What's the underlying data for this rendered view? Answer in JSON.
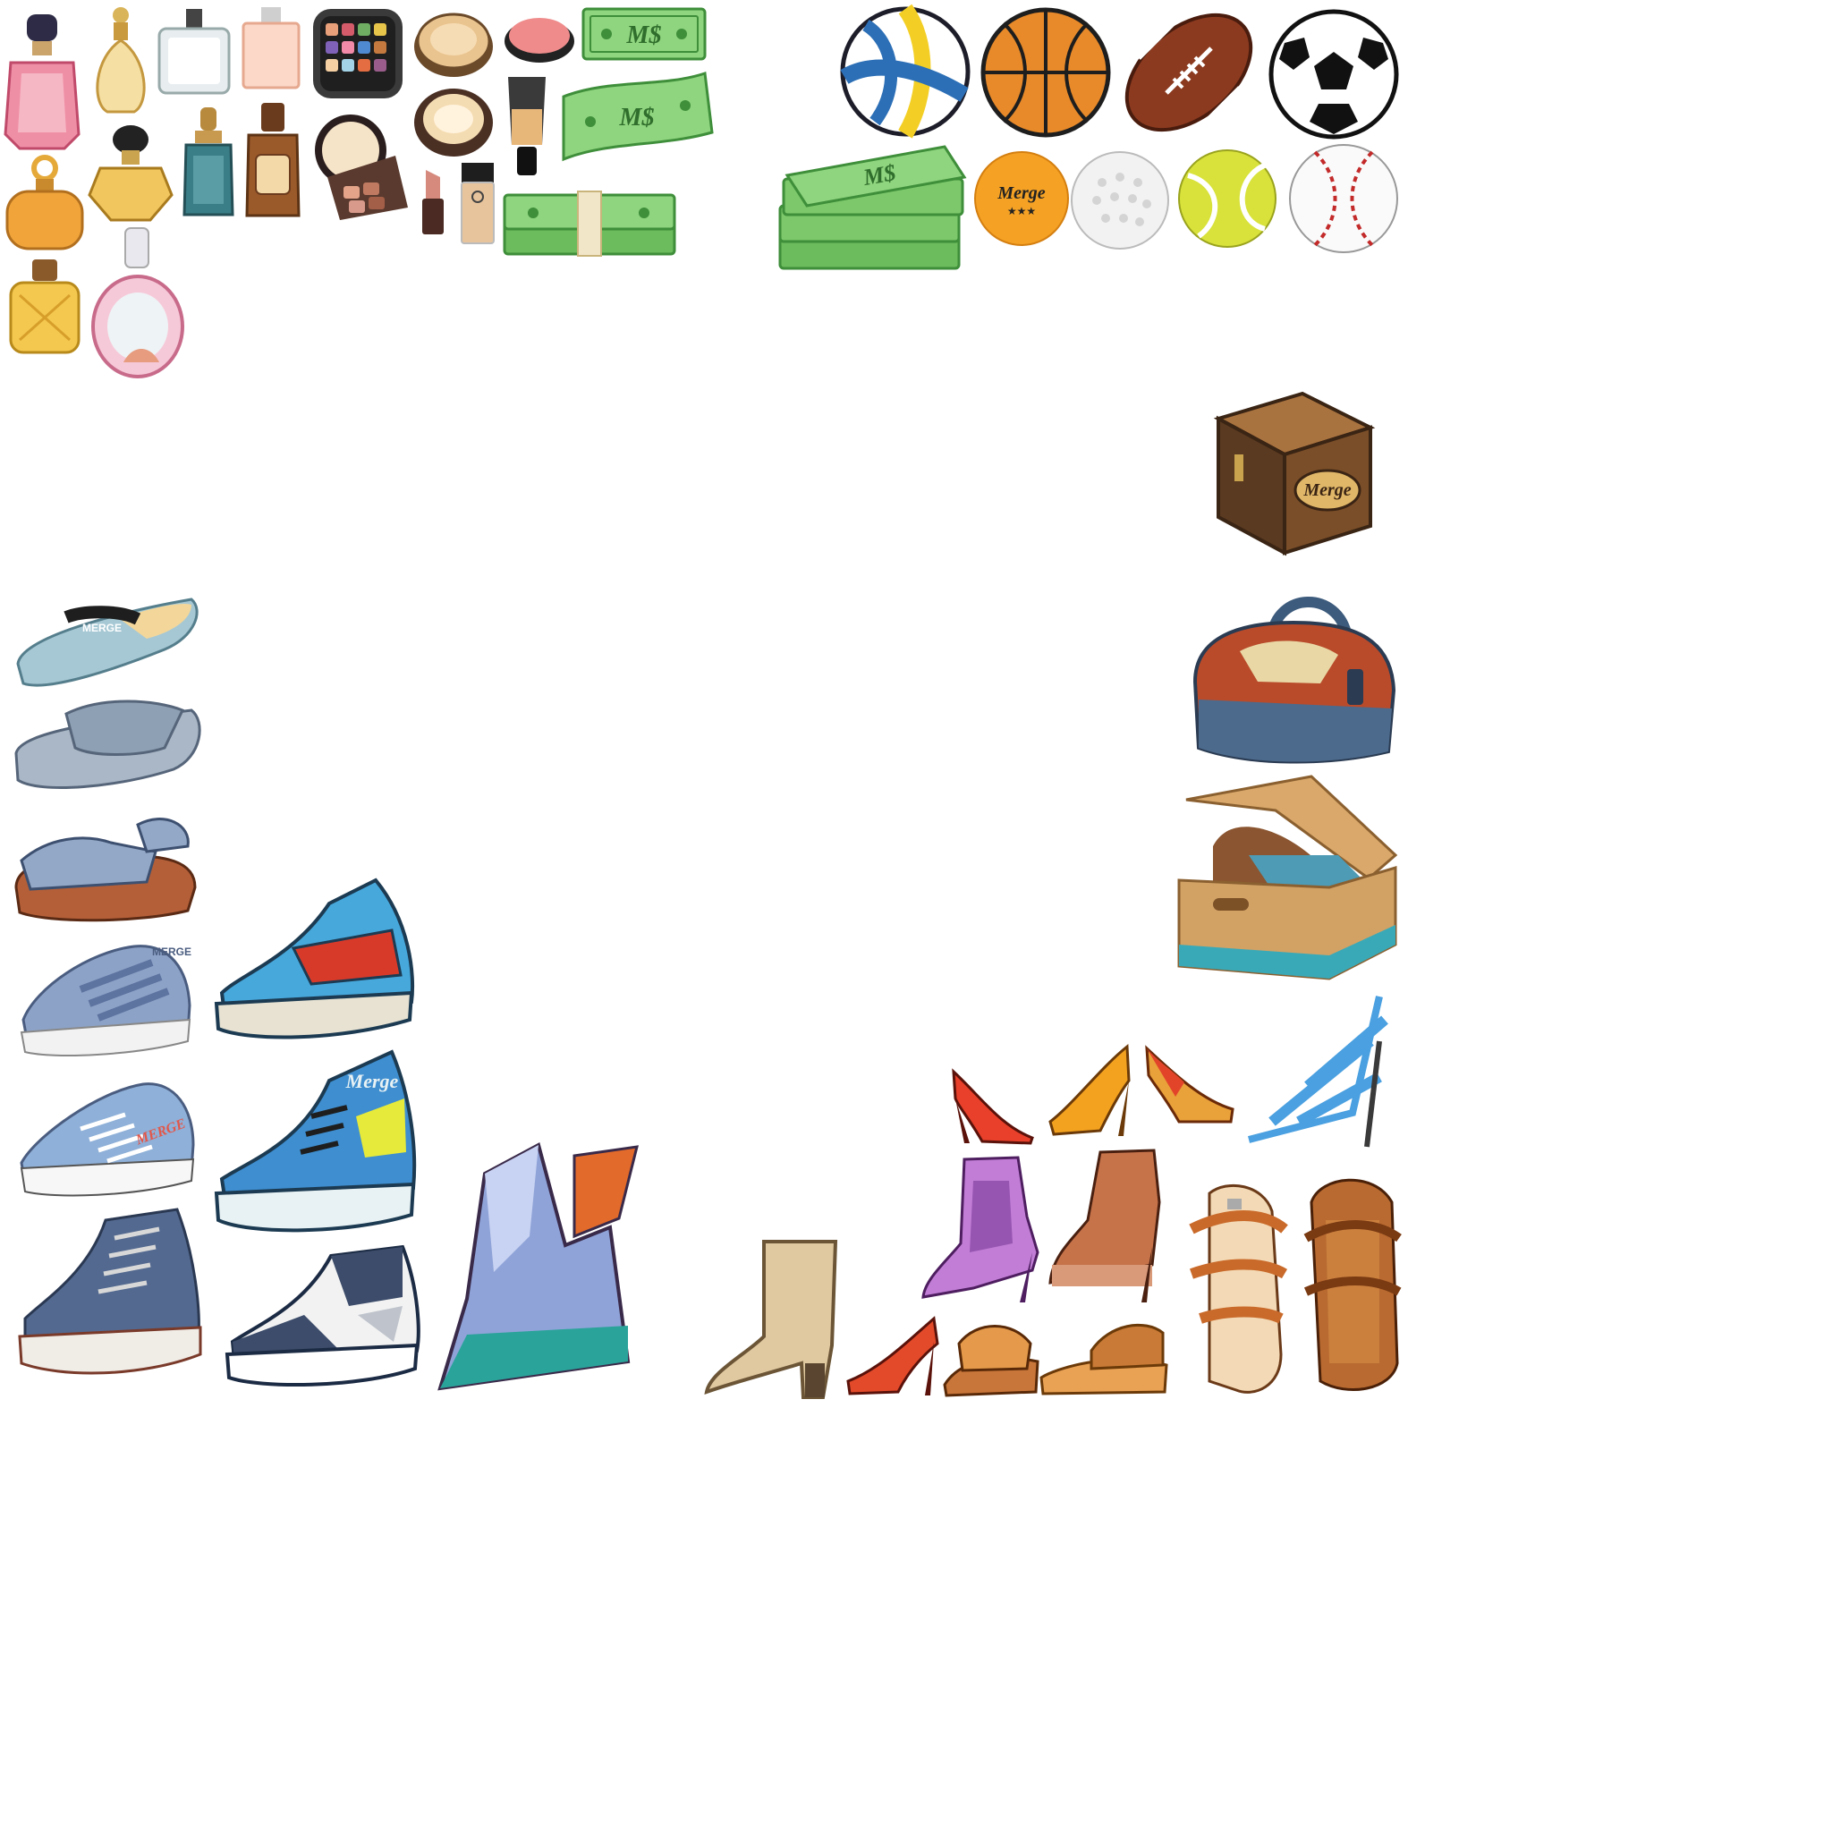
{
  "sheet": {
    "labels": {
      "cash": "M$",
      "brand": "Merge",
      "slipper_brand": "MERGE",
      "ball_stars": "★★★"
    },
    "colors": {
      "cash_green": "#7ccd6e",
      "cash_dark": "#3e8e3a",
      "leather": "#8b5a2b",
      "denim": "#7f93b8",
      "red_heel": "#e8402a",
      "orange_heel": "#f3a21f",
      "gold": "#e5a93a"
    },
    "groups": [
      {
        "id": "perfumes",
        "icon": "perfume-bottle-icon",
        "count": 10
      },
      {
        "id": "cosmetics",
        "icon": "makeup-icon",
        "count": 8
      },
      {
        "id": "cash",
        "icon": "money-stack-icon",
        "count": 4
      },
      {
        "id": "balls",
        "icon": "sports-ball-icon",
        "count": 8
      },
      {
        "id": "containers",
        "icon": "box-icon",
        "count": 3
      },
      {
        "id": "shoes",
        "icon": "shoe-icon",
        "count": 25
      }
    ]
  }
}
